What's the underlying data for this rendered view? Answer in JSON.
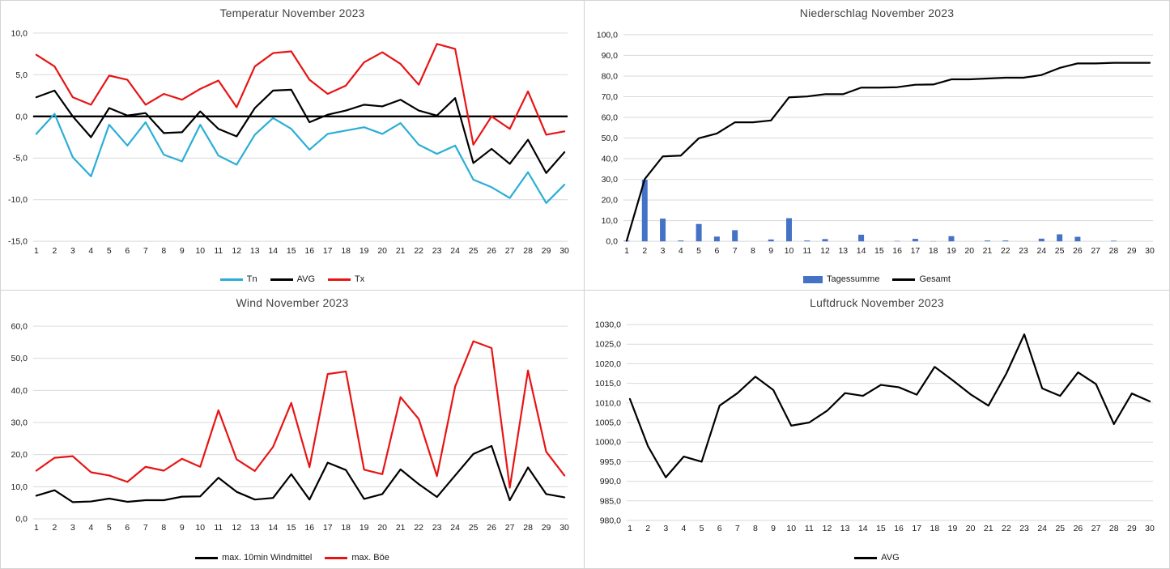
{
  "page": {
    "background": "#ffffff",
    "divider_color": "#d0d0d0",
    "gridline_color": "#d9d9d9",
    "title_color": "#424242",
    "tick_color": "#1a1a1a"
  },
  "chart_data": [
    {
      "type": "line",
      "title": "Temperatur November 2023",
      "categories": [
        1,
        2,
        3,
        4,
        5,
        6,
        7,
        8,
        9,
        10,
        11,
        12,
        13,
        14,
        15,
        16,
        17,
        18,
        19,
        20,
        21,
        22,
        23,
        24,
        25,
        26,
        27,
        28,
        29,
        30
      ],
      "xlabel": "",
      "ylabel": "",
      "ylim": [
        -15,
        10
      ],
      "ytick": 5,
      "ytick_labels": [
        "10,0",
        "5,0",
        "0,0",
        "-5,0",
        "-10,0",
        "-15,0"
      ],
      "grid": true,
      "legend_position": "bottom",
      "zero_axis": true,
      "series": [
        {
          "name": "Tn",
          "style": "line",
          "color": "#2aaed6",
          "values": [
            -2.1,
            0.3,
            -4.9,
            -7.2,
            -1.0,
            -3.5,
            -0.7,
            -4.6,
            -5.4,
            -1.0,
            -4.7,
            -5.8,
            -2.2,
            -0.2,
            -1.5,
            -4.0,
            -2.1,
            -1.7,
            -1.3,
            -2.1,
            -0.8,
            -3.4,
            -4.5,
            -3.5,
            -7.6,
            -8.5,
            -9.8,
            -6.7,
            -10.4,
            -8.2
          ]
        },
        {
          "name": "AVG",
          "style": "line",
          "color": "#000000",
          "values": [
            2.3,
            3.1,
            0.0,
            -2.5,
            1.0,
            0.1,
            0.4,
            -2.0,
            -1.9,
            0.6,
            -1.5,
            -2.4,
            1.0,
            3.1,
            3.2,
            -0.7,
            0.2,
            0.7,
            1.4,
            1.2,
            2.0,
            0.7,
            0.1,
            2.2,
            -5.6,
            -3.9,
            -5.7,
            -2.8,
            -6.8,
            -4.3
          ]
        },
        {
          "name": "Tx",
          "style": "line",
          "color": "#e81414",
          "values": [
            7.4,
            6.0,
            2.3,
            1.4,
            4.9,
            4.4,
            1.4,
            2.7,
            2.0,
            3.3,
            4.3,
            1.1,
            6.0,
            7.6,
            7.8,
            4.4,
            2.7,
            3.7,
            6.5,
            7.7,
            6.3,
            3.8,
            8.7,
            8.1,
            -3.4,
            0.0,
            -1.5,
            3.0,
            -2.2,
            -1.8
          ]
        }
      ]
    },
    {
      "type": "bar",
      "title": "Niederschlag November 2023",
      "categories": [
        1,
        2,
        3,
        4,
        5,
        6,
        7,
        8,
        9,
        10,
        11,
        12,
        13,
        14,
        15,
        16,
        17,
        18,
        19,
        20,
        21,
        22,
        23,
        24,
        25,
        26,
        27,
        28,
        29,
        30
      ],
      "xlabel": "",
      "ylabel": "",
      "ylim": [
        0,
        100
      ],
      "ytick": 10,
      "ytick_labels": [
        "100,0",
        "90,0",
        "80,0",
        "70,0",
        "60,0",
        "50,0",
        "40,0",
        "30,0",
        "20,0",
        "10,0",
        "0,0"
      ],
      "grid": true,
      "legend_position": "bottom",
      "zero_axis": false,
      "series": [
        {
          "name": "Tagessumme",
          "style": "bar",
          "color": "#4472c4",
          "values": [
            0.3,
            29.8,
            11.0,
            0.4,
            8.4,
            2.3,
            5.4,
            0,
            0.9,
            11.2,
            0.4,
            1.1,
            0,
            3.2,
            0,
            0.2,
            1.2,
            0.1,
            2.5,
            0,
            0.4,
            0.4,
            0,
            1.3,
            3.4,
            2.2,
            0,
            0.3,
            0,
            0
          ]
        },
        {
          "name": "Gesamt",
          "style": "line",
          "color": "#000000",
          "values": [
            0.3,
            30.1,
            41.1,
            41.5,
            49.9,
            52.2,
            57.6,
            57.6,
            58.5,
            69.7,
            70.1,
            71.2,
            71.2,
            74.4,
            74.4,
            74.6,
            75.8,
            75.9,
            78.4,
            78.4,
            78.8,
            79.2,
            79.2,
            80.5,
            83.9,
            86.1,
            86.1,
            86.4,
            86.4,
            86.4
          ]
        }
      ]
    },
    {
      "type": "line",
      "title": "Wind November 2023",
      "categories": [
        1,
        2,
        3,
        4,
        5,
        6,
        7,
        8,
        9,
        10,
        11,
        12,
        13,
        14,
        15,
        16,
        17,
        18,
        19,
        20,
        21,
        22,
        23,
        24,
        25,
        26,
        27,
        28,
        29,
        30
      ],
      "xlabel": "",
      "ylabel": "",
      "ylim": [
        0,
        60
      ],
      "ytick": 10,
      "ytick_labels": [
        "60,0",
        "50,0",
        "40,0",
        "30,0",
        "20,0",
        "10,0",
        "0,0"
      ],
      "grid": true,
      "legend_position": "bottom",
      "zero_axis": false,
      "series": [
        {
          "name": "max. 10min Windmittel",
          "style": "line",
          "color": "#000000",
          "values": [
            7.2,
            8.9,
            5.2,
            5.4,
            6.3,
            5.3,
            5.8,
            5.8,
            6.9,
            7.0,
            12.8,
            8.4,
            6.0,
            6.5,
            13.9,
            6.0,
            17.5,
            15.2,
            6.2,
            7.7,
            15.4,
            10.8,
            6.8,
            13.5,
            20.2,
            22.7,
            5.8,
            16.0,
            7.7,
            6.7
          ]
        },
        {
          "name": "max. Böe",
          "style": "line",
          "color": "#e81414",
          "values": [
            15.0,
            19.0,
            19.5,
            14.5,
            13.5,
            11.5,
            16.2,
            15.0,
            18.7,
            16.2,
            33.8,
            18.5,
            14.9,
            22.4,
            36.1,
            16.1,
            45.1,
            45.9,
            15.3,
            13.9,
            37.9,
            31.1,
            13.3,
            41.2,
            55.3,
            53.2,
            9.7,
            46.2,
            20.9,
            13.5
          ]
        }
      ]
    },
    {
      "type": "line",
      "title": "Luftdruck November 2023",
      "categories": [
        1,
        2,
        3,
        4,
        5,
        6,
        7,
        8,
        9,
        10,
        11,
        12,
        13,
        14,
        15,
        16,
        17,
        18,
        19,
        20,
        21,
        22,
        23,
        24,
        25,
        26,
        27,
        28,
        29,
        30
      ],
      "xlabel": "",
      "ylabel": "",
      "ylim": [
        980,
        1030
      ],
      "ytick": 5,
      "ytick_labels": [
        "1030,0",
        "1025,0",
        "1020,0",
        "1015,0",
        "1010,0",
        "1005,0",
        "1000,0",
        "995,0",
        "990,0",
        "985,0",
        "980,0"
      ],
      "grid": true,
      "legend_position": "bottom",
      "zero_axis": false,
      "series": [
        {
          "name": "AVG",
          "style": "line",
          "color": "#000000",
          "values": [
            1011.0,
            999.0,
            991.0,
            996.3,
            995.0,
            1009.3,
            1012.5,
            1016.7,
            1013.3,
            1004.2,
            1005.0,
            1008.0,
            1012.5,
            1011.8,
            1014.6,
            1014.0,
            1012.1,
            1019.2,
            1015.8,
            1012.2,
            1009.3,
            1017.5,
            1027.5,
            1013.7,
            1011.8,
            1017.8,
            1014.8,
            1004.6,
            1012.4,
            1010.4
          ]
        }
      ]
    }
  ]
}
